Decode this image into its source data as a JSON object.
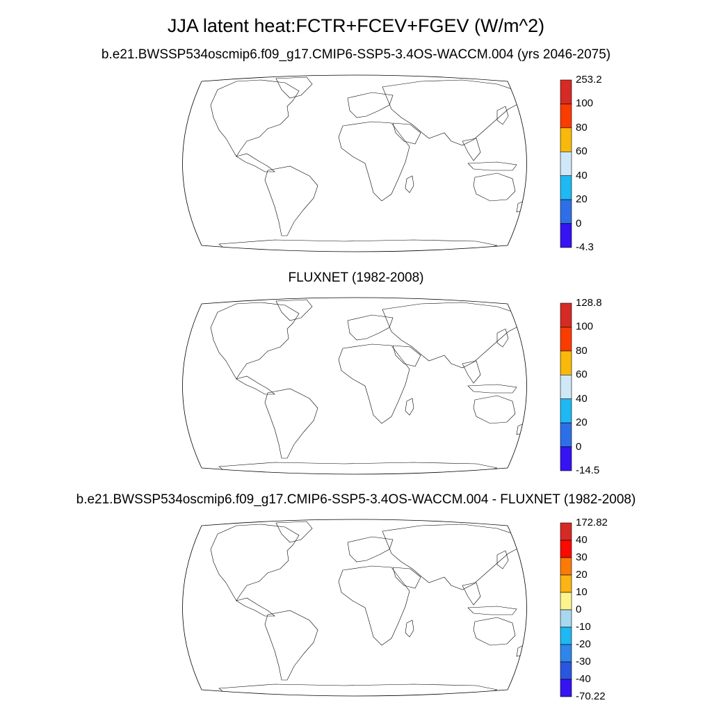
{
  "main_title": "JJA latent heat:FCTR+FCEV+FGEV (W/m^2)",
  "panels": [
    {
      "title": "b.e21.BWSSP534oscmip6.f09_g17.CMIP6-SSP5-3.4OS-WACCM.004 (yrs 2046-2075)",
      "colorbar": {
        "labels": [
          "253.2",
          "100",
          "80",
          "60",
          "40",
          "20",
          "0",
          "-4.3"
        ],
        "colors": [
          "#d62a26",
          "#fa3c00",
          "#f9b90b",
          "#cfe8f7",
          "#1fb8f2",
          "#2e6fe8",
          "#3513f2"
        ]
      }
    },
    {
      "title": "FLUXNET (1982-2008)",
      "colorbar": {
        "labels": [
          "128.8",
          "100",
          "80",
          "60",
          "40",
          "20",
          "0",
          "-14.5"
        ],
        "colors": [
          "#d62a26",
          "#fa3c00",
          "#f9b90b",
          "#cfe8f7",
          "#1fb8f2",
          "#2e6fe8",
          "#3513f2"
        ]
      }
    },
    {
      "title": "b.e21.BWSSP534oscmip6.f09_g17.CMIP6-SSP5-3.4OS-WACCM.004 - FLUXNET (1982-2008)",
      "colorbar": {
        "labels": [
          "172.82",
          "40",
          "30",
          "20",
          "10",
          "0",
          "-10",
          "-20",
          "-30",
          "-40",
          "-70.22"
        ],
        "colors": [
          "#d62a26",
          "#fa0a00",
          "#fb7a08",
          "#fbb414",
          "#fcf58c",
          "#a8d8f0",
          "#1fb8f2",
          "#2e86ea",
          "#2a56e0",
          "#3513f2"
        ]
      }
    }
  ]
}
